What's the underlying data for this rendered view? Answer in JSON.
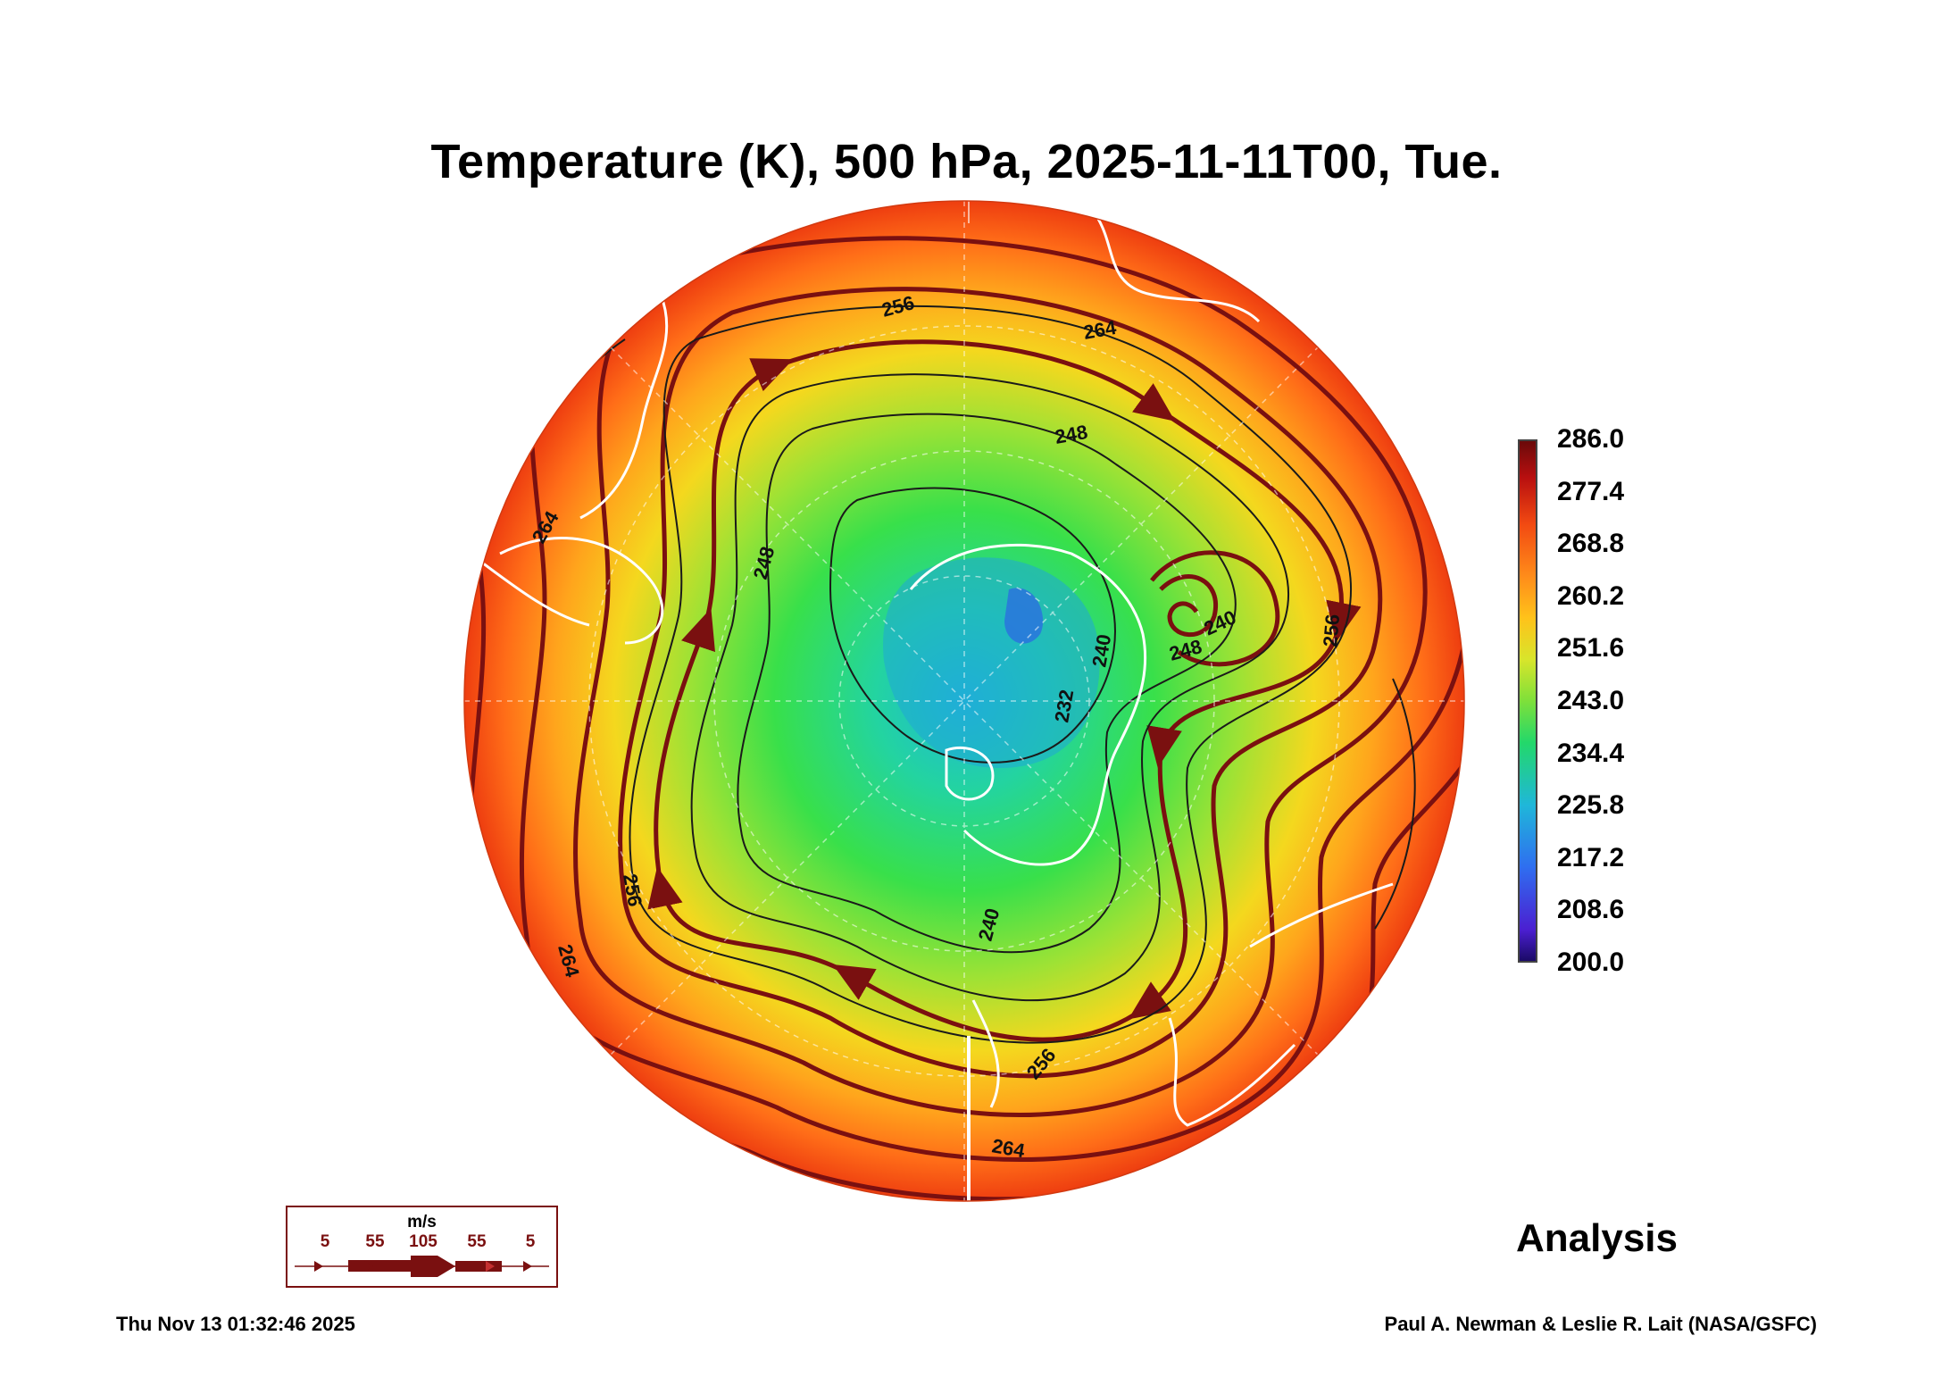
{
  "title": "Temperature (K), 500 hPa, 2025-11-11T00, Tue.",
  "colorbar": {
    "ticks": [
      "286.0",
      "277.4",
      "268.8",
      "260.2",
      "251.6",
      "243.0",
      "234.4",
      "225.8",
      "217.2",
      "208.6",
      "200.0"
    ],
    "min": 200.0,
    "max": 286.0
  },
  "contour_labels": [
    "256",
    "264",
    "248",
    "248",
    "264",
    "240",
    "232",
    "248",
    "240",
    "256",
    "256",
    "264",
    "240",
    "264",
    "256"
  ],
  "wind_legend": {
    "unit": "m/s",
    "speeds": [
      "5",
      "55",
      "105",
      "55",
      "5"
    ]
  },
  "analysis_label": "Analysis",
  "timestamp": "Thu Nov 13 01:32:46 2025",
  "credit": "Paul A. Newman & Leslie R. Lait (NASA/GSFC)",
  "colors": {
    "warm_edge": "#f24a12",
    "cold_core": "#1fb7d9",
    "streamline": "#7a1010",
    "coastline": "#ffffff"
  }
}
